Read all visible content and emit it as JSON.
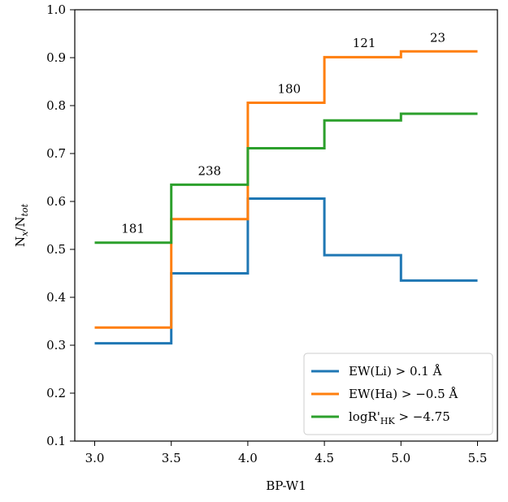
{
  "chart_data": {
    "type": "line",
    "step": "post",
    "xlabel": "BP-W1",
    "ylabel": "N",
    "ylabel_sub": "x",
    "ylabel_mid": "/N",
    "ylabel_sub2": "tot",
    "xlim": [
      2.87,
      5.63
    ],
    "ylim": [
      0.1,
      1.0
    ],
    "xticks": [
      "3.0",
      "3.5",
      "4.0",
      "4.5",
      "5.0",
      "5.5"
    ],
    "yticks": [
      "0.1",
      "0.2",
      "0.3",
      "0.4",
      "0.5",
      "0.6",
      "0.7",
      "0.8",
      "0.9",
      "1.0"
    ],
    "x": [
      3.0,
      3.5,
      4.0,
      4.5,
      5.0,
      5.5
    ],
    "grid": false,
    "legend_position": "lower-right",
    "series": [
      {
        "name": "EW(Li) > 0.1 Å",
        "color": "#1f77b4",
        "values": [
          0.304,
          0.45,
          0.606,
          0.488,
          0.435,
          0.435
        ]
      },
      {
        "name": "EW(Ha) > −0.5 Å",
        "color": "#ff7f0e",
        "values": [
          0.337,
          0.563,
          0.806,
          0.901,
          0.913,
          0.913
        ]
      },
      {
        "name": "logR'_HK > −4.75",
        "color": "#2ca02c",
        "values": [
          0.514,
          0.635,
          0.711,
          0.769,
          0.783,
          0.783
        ]
      }
    ],
    "legend": {
      "items": [
        {
          "prefix": "EW(Li) ",
          "rest": "> 0.1 Å"
        },
        {
          "prefix": "EW(Ha) ",
          "rest": "> −0.5 Å"
        },
        {
          "prefix": "logR'",
          "sub": "HK",
          "rest": " > −4.75"
        }
      ]
    },
    "annotations": [
      {
        "text": "181",
        "x": 3.25,
        "y": 0.535
      },
      {
        "text": "238",
        "x": 3.75,
        "y": 0.655
      },
      {
        "text": "180",
        "x": 4.27,
        "y": 0.826
      },
      {
        "text": "121",
        "x": 4.76,
        "y": 0.922
      },
      {
        "text": "23",
        "x": 5.24,
        "y": 0.933
      }
    ]
  }
}
